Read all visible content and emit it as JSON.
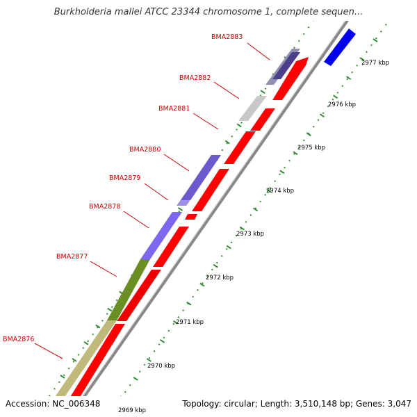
{
  "title": "Burkholderia mallei ATCC 23344 chromosome 1, complete sequen...",
  "footer": {
    "accession": "Accession: NC_006348",
    "summary": "Topology: circular; Length: 3,510,148 bp; Genes: 3,047"
  },
  "colors": {
    "label_red": "#cc0000",
    "cds_forward": "#ff0000",
    "tick_green": "#2e8b2e",
    "backbone": "#888888"
  },
  "gene_labels": [
    {
      "name": "BMA2883",
      "label_color": "#cc0000"
    },
    {
      "name": "BMA2882",
      "label_color": "#cc0000"
    },
    {
      "name": "BMA2881",
      "label_color": "#cc0000"
    },
    {
      "name": "BMA2880",
      "label_color": "#cc0000"
    },
    {
      "name": "BMA2879",
      "label_color": "#cc0000"
    },
    {
      "name": "BMA2878",
      "label_color": "#cc0000"
    },
    {
      "name": "BMA2877",
      "label_color": "#cc0000"
    },
    {
      "name": "BMA2876",
      "label_color": "#cc0000"
    }
  ],
  "kbp_ticks": [
    "2977 kbp",
    "2976 kbp",
    "2975 kbp",
    "2974 kbp",
    "2973 kbp",
    "2972 kbp",
    "2971 kbp",
    "2970 kbp",
    "2969 kbp"
  ]
}
